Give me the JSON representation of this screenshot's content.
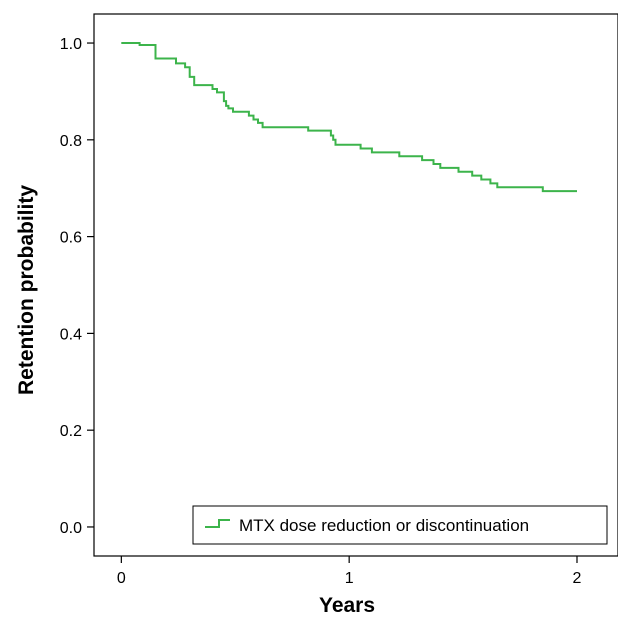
{
  "chart_data": {
    "type": "line",
    "title": "",
    "xlabel": "Years",
    "ylabel": "Retention probability",
    "xlim": [
      -0.12,
      2.18
    ],
    "ylim": [
      -0.06,
      1.06
    ],
    "x_ticks": [
      0,
      1,
      2
    ],
    "x_tick_labels": [
      "0",
      "1",
      "2"
    ],
    "y_ticks": [
      0,
      0.2,
      0.4,
      0.6,
      0.8,
      1.0
    ],
    "y_tick_labels": [
      "0.0",
      "0.2",
      "0.4",
      "0.6",
      "0.8",
      "1.0"
    ],
    "grid": false,
    "legend_position": "bottom-right",
    "series": [
      {
        "name": "MTX dose reduction or discontinuation",
        "color": "#3cb44b",
        "step": true,
        "x": [
          0,
          0.08,
          0.15,
          0.24,
          0.28,
          0.3,
          0.32,
          0.4,
          0.42,
          0.45,
          0.46,
          0.47,
          0.49,
          0.56,
          0.58,
          0.6,
          0.62,
          0.82,
          0.92,
          0.93,
          0.94,
          1.05,
          1.1,
          1.22,
          1.32,
          1.37,
          1.4,
          1.48,
          1.54,
          1.58,
          1.62,
          1.65,
          1.85,
          2.0
        ],
        "y": [
          1.0,
          0.996,
          0.968,
          0.958,
          0.95,
          0.93,
          0.913,
          0.905,
          0.898,
          0.88,
          0.87,
          0.865,
          0.858,
          0.85,
          0.842,
          0.835,
          0.826,
          0.819,
          0.809,
          0.8,
          0.79,
          0.782,
          0.774,
          0.766,
          0.758,
          0.75,
          0.742,
          0.734,
          0.726,
          0.718,
          0.71,
          0.702,
          0.694,
          0.694
        ]
      }
    ]
  }
}
